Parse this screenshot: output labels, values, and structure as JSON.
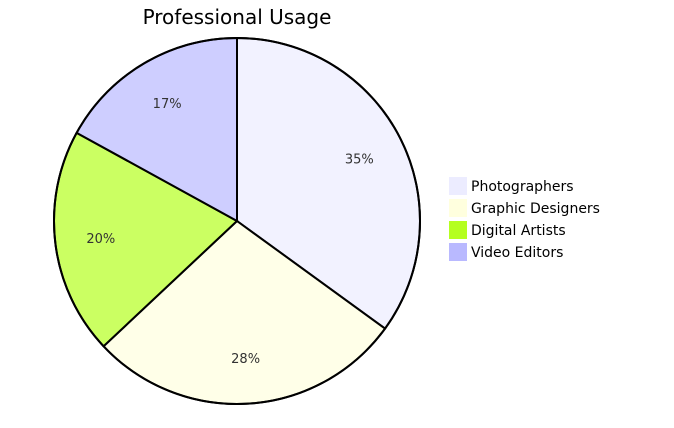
{
  "chart_data": {
    "type": "pie",
    "title": "Professional Usage",
    "categories": [
      "Photographers",
      "Graphic Designers",
      "Digital Artists",
      "Video Editors"
    ],
    "values": [
      35,
      28,
      20,
      17
    ],
    "labels": [
      "35%",
      "28%",
      "20%",
      "17%"
    ],
    "colors": [
      "#ECECFF",
      "#FFFFDE",
      "#B5FF20",
      "#B9B9FF"
    ],
    "legend_position": "right"
  }
}
